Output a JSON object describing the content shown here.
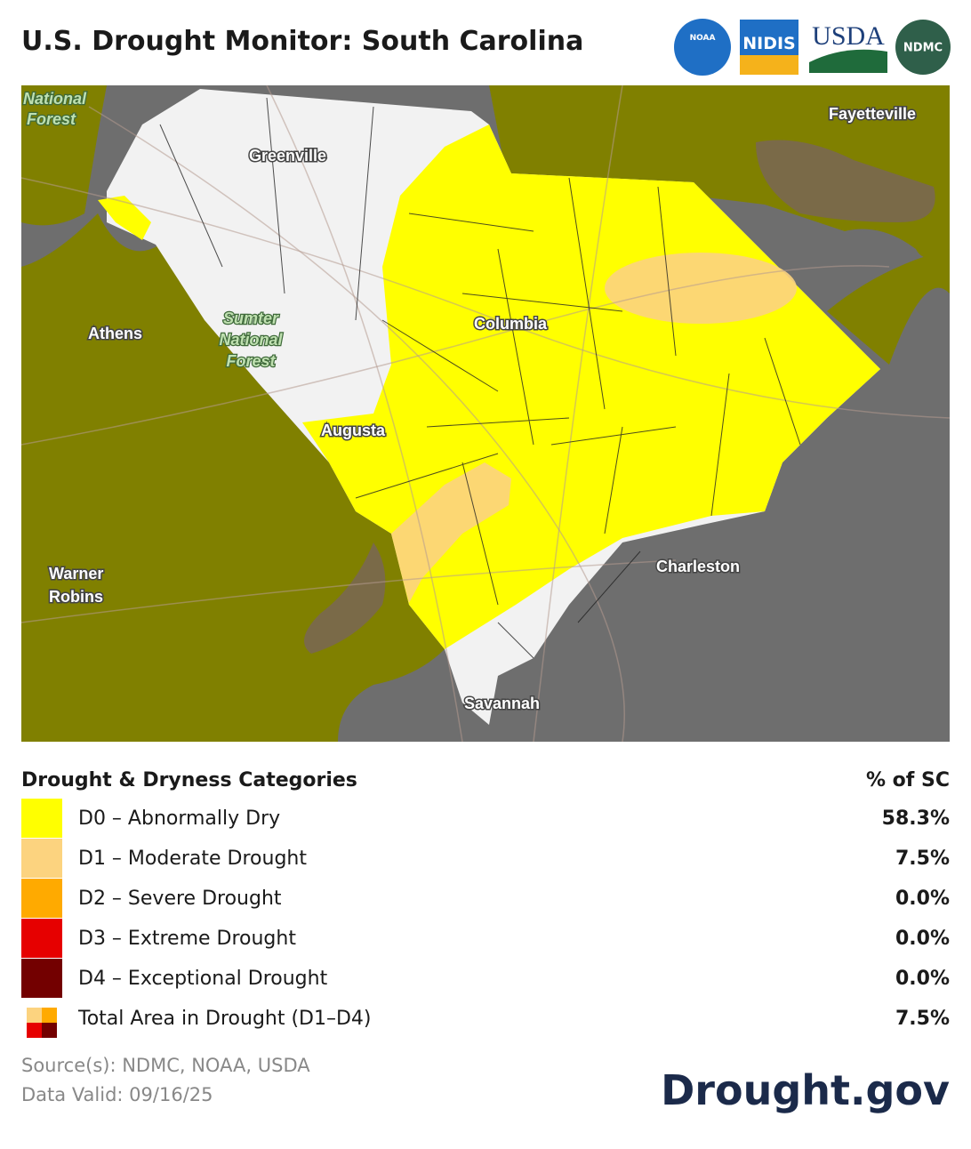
{
  "header": {
    "title": "U.S. Drought Monitor: South Carolina",
    "logos": [
      "NOAA",
      "NIDIS",
      "USDA",
      "NDMC"
    ]
  },
  "map": {
    "labels": [
      {
        "lines": [
          "National",
          "Forest"
        ]
      },
      {
        "lines": [
          "Greenville"
        ]
      },
      {
        "lines": [
          "Fayetteville"
        ]
      },
      {
        "lines": [
          "Athens"
        ]
      },
      {
        "lines": [
          "Sumter",
          "National",
          "Forest"
        ]
      },
      {
        "lines": [
          "Columbia"
        ]
      },
      {
        "lines": [
          "Augusta"
        ]
      },
      {
        "lines": [
          "Charleston"
        ]
      },
      {
        "lines": [
          "Warner",
          "Robins"
        ]
      },
      {
        "lines": [
          "Savannah"
        ]
      }
    ]
  },
  "legend": {
    "title": "Drought & Dryness Categories",
    "column": "% of SC",
    "rows": [
      {
        "label": "D0 – Abnormally Dry",
        "value": "58.3%",
        "color": "#ffff00"
      },
      {
        "label": "D1 – Moderate Drought",
        "value": "7.5%",
        "color": "#fcd37f"
      },
      {
        "label": "D2 – Severe Drought",
        "value": "0.0%",
        "color": "#ffaa00"
      },
      {
        "label": "D3 – Extreme Drought",
        "value": "0.0%",
        "color": "#e60000"
      },
      {
        "label": "D4 – Exceptional Drought",
        "value": "0.0%",
        "color": "#730000"
      },
      {
        "label": "Total Area in Drought (D1–D4)",
        "value": "7.5%"
      }
    ]
  },
  "footer": {
    "source": "Source(s): NDMC, NOAA, USDA",
    "valid": "Data Valid: 09/16/25",
    "brand": "Drought.gov"
  }
}
